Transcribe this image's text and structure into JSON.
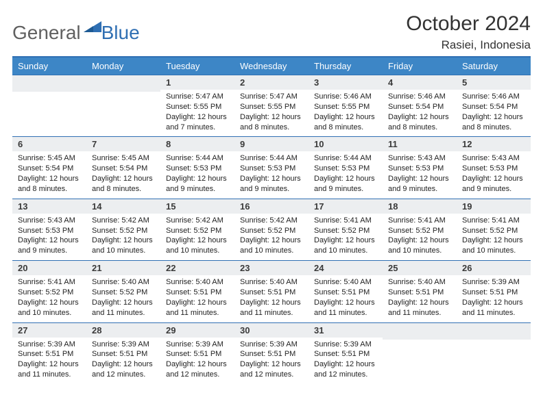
{
  "brand": {
    "part1": "General",
    "part2": "Blue",
    "mark_color": "#2f6fb3"
  },
  "title": "October 2024",
  "location": "Rasiei, Indonesia",
  "colors": {
    "header_bg": "#3d86c6",
    "divider": "#2f6fb3",
    "day_bg": "#eceef0"
  },
  "day_headers": [
    "Sunday",
    "Monday",
    "Tuesday",
    "Wednesday",
    "Thursday",
    "Friday",
    "Saturday"
  ],
  "weeks": [
    [
      null,
      null,
      {
        "n": "1",
        "sr": "Sunrise: 5:47 AM",
        "ss": "Sunset: 5:55 PM",
        "dl": "Daylight: 12 hours and 7 minutes."
      },
      {
        "n": "2",
        "sr": "Sunrise: 5:47 AM",
        "ss": "Sunset: 5:55 PM",
        "dl": "Daylight: 12 hours and 8 minutes."
      },
      {
        "n": "3",
        "sr": "Sunrise: 5:46 AM",
        "ss": "Sunset: 5:55 PM",
        "dl": "Daylight: 12 hours and 8 minutes."
      },
      {
        "n": "4",
        "sr": "Sunrise: 5:46 AM",
        "ss": "Sunset: 5:54 PM",
        "dl": "Daylight: 12 hours and 8 minutes."
      },
      {
        "n": "5",
        "sr": "Sunrise: 5:46 AM",
        "ss": "Sunset: 5:54 PM",
        "dl": "Daylight: 12 hours and 8 minutes."
      }
    ],
    [
      {
        "n": "6",
        "sr": "Sunrise: 5:45 AM",
        "ss": "Sunset: 5:54 PM",
        "dl": "Daylight: 12 hours and 8 minutes."
      },
      {
        "n": "7",
        "sr": "Sunrise: 5:45 AM",
        "ss": "Sunset: 5:54 PM",
        "dl": "Daylight: 12 hours and 8 minutes."
      },
      {
        "n": "8",
        "sr": "Sunrise: 5:44 AM",
        "ss": "Sunset: 5:53 PM",
        "dl": "Daylight: 12 hours and 9 minutes."
      },
      {
        "n": "9",
        "sr": "Sunrise: 5:44 AM",
        "ss": "Sunset: 5:53 PM",
        "dl": "Daylight: 12 hours and 9 minutes."
      },
      {
        "n": "10",
        "sr": "Sunrise: 5:44 AM",
        "ss": "Sunset: 5:53 PM",
        "dl": "Daylight: 12 hours and 9 minutes."
      },
      {
        "n": "11",
        "sr": "Sunrise: 5:43 AM",
        "ss": "Sunset: 5:53 PM",
        "dl": "Daylight: 12 hours and 9 minutes."
      },
      {
        "n": "12",
        "sr": "Sunrise: 5:43 AM",
        "ss": "Sunset: 5:53 PM",
        "dl": "Daylight: 12 hours and 9 minutes."
      }
    ],
    [
      {
        "n": "13",
        "sr": "Sunrise: 5:43 AM",
        "ss": "Sunset: 5:53 PM",
        "dl": "Daylight: 12 hours and 9 minutes."
      },
      {
        "n": "14",
        "sr": "Sunrise: 5:42 AM",
        "ss": "Sunset: 5:52 PM",
        "dl": "Daylight: 12 hours and 10 minutes."
      },
      {
        "n": "15",
        "sr": "Sunrise: 5:42 AM",
        "ss": "Sunset: 5:52 PM",
        "dl": "Daylight: 12 hours and 10 minutes."
      },
      {
        "n": "16",
        "sr": "Sunrise: 5:42 AM",
        "ss": "Sunset: 5:52 PM",
        "dl": "Daylight: 12 hours and 10 minutes."
      },
      {
        "n": "17",
        "sr": "Sunrise: 5:41 AM",
        "ss": "Sunset: 5:52 PM",
        "dl": "Daylight: 12 hours and 10 minutes."
      },
      {
        "n": "18",
        "sr": "Sunrise: 5:41 AM",
        "ss": "Sunset: 5:52 PM",
        "dl": "Daylight: 12 hours and 10 minutes."
      },
      {
        "n": "19",
        "sr": "Sunrise: 5:41 AM",
        "ss": "Sunset: 5:52 PM",
        "dl": "Daylight: 12 hours and 10 minutes."
      }
    ],
    [
      {
        "n": "20",
        "sr": "Sunrise: 5:41 AM",
        "ss": "Sunset: 5:52 PM",
        "dl": "Daylight: 12 hours and 10 minutes."
      },
      {
        "n": "21",
        "sr": "Sunrise: 5:40 AM",
        "ss": "Sunset: 5:52 PM",
        "dl": "Daylight: 12 hours and 11 minutes."
      },
      {
        "n": "22",
        "sr": "Sunrise: 5:40 AM",
        "ss": "Sunset: 5:51 PM",
        "dl": "Daylight: 12 hours and 11 minutes."
      },
      {
        "n": "23",
        "sr": "Sunrise: 5:40 AM",
        "ss": "Sunset: 5:51 PM",
        "dl": "Daylight: 12 hours and 11 minutes."
      },
      {
        "n": "24",
        "sr": "Sunrise: 5:40 AM",
        "ss": "Sunset: 5:51 PM",
        "dl": "Daylight: 12 hours and 11 minutes."
      },
      {
        "n": "25",
        "sr": "Sunrise: 5:40 AM",
        "ss": "Sunset: 5:51 PM",
        "dl": "Daylight: 12 hours and 11 minutes."
      },
      {
        "n": "26",
        "sr": "Sunrise: 5:39 AM",
        "ss": "Sunset: 5:51 PM",
        "dl": "Daylight: 12 hours and 11 minutes."
      }
    ],
    [
      {
        "n": "27",
        "sr": "Sunrise: 5:39 AM",
        "ss": "Sunset: 5:51 PM",
        "dl": "Daylight: 12 hours and 11 minutes."
      },
      {
        "n": "28",
        "sr": "Sunrise: 5:39 AM",
        "ss": "Sunset: 5:51 PM",
        "dl": "Daylight: 12 hours and 12 minutes."
      },
      {
        "n": "29",
        "sr": "Sunrise: 5:39 AM",
        "ss": "Sunset: 5:51 PM",
        "dl": "Daylight: 12 hours and 12 minutes."
      },
      {
        "n": "30",
        "sr": "Sunrise: 5:39 AM",
        "ss": "Sunset: 5:51 PM",
        "dl": "Daylight: 12 hours and 12 minutes."
      },
      {
        "n": "31",
        "sr": "Sunrise: 5:39 AM",
        "ss": "Sunset: 5:51 PM",
        "dl": "Daylight: 12 hours and 12 minutes."
      },
      null,
      null
    ]
  ]
}
